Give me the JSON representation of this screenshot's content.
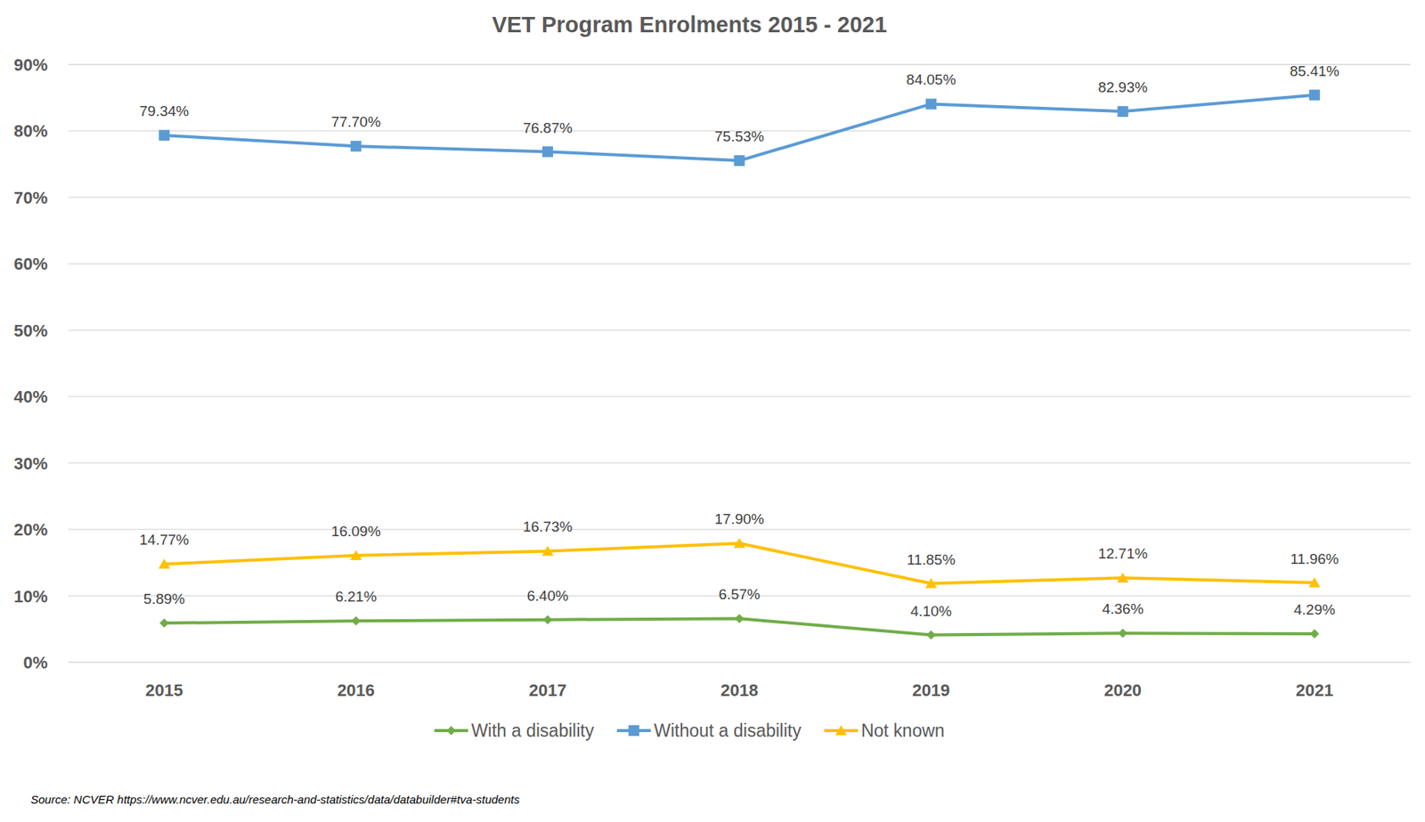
{
  "chart_data": {
    "type": "line",
    "title": "VET Program Enrolments 2015 - 2021",
    "categories": [
      "2015",
      "2016",
      "2017",
      "2018",
      "2019",
      "2020",
      "2021"
    ],
    "series": [
      {
        "name": "With a disability",
        "color": "#70ad47",
        "marker": "diamond",
        "values": [
          5.89,
          6.21,
          6.4,
          6.57,
          4.1,
          4.36,
          4.29
        ],
        "value_labels": [
          "5.89%",
          "6.21%",
          "6.40%",
          "6.57%",
          "4.10%",
          "4.36%",
          "4.29%"
        ]
      },
      {
        "name": "Without a disability",
        "color": "#5b9bd5",
        "marker": "square",
        "values": [
          79.34,
          77.7,
          76.87,
          75.53,
          84.05,
          82.93,
          85.41
        ],
        "value_labels": [
          "79.34%",
          "77.70%",
          "76.87%",
          "75.53%",
          "84.05%",
          "82.93%",
          "85.41%"
        ]
      },
      {
        "name": "Not known",
        "color": "#ffc000",
        "marker": "triangle",
        "values": [
          14.77,
          16.09,
          16.73,
          17.9,
          11.85,
          12.71,
          11.96
        ],
        "value_labels": [
          "14.77%",
          "16.09%",
          "16.73%",
          "17.90%",
          "11.85%",
          "12.71%",
          "11.96%"
        ]
      }
    ],
    "ylim": [
      0,
      90
    ],
    "yticks": [
      {
        "value": 0,
        "label": "0%"
      },
      {
        "value": 10,
        "label": "10%"
      },
      {
        "value": 20,
        "label": "20%"
      },
      {
        "value": 30,
        "label": "30%"
      },
      {
        "value": 40,
        "label": "40%"
      },
      {
        "value": 50,
        "label": "50%"
      },
      {
        "value": 60,
        "label": "60%"
      },
      {
        "value": 70,
        "label": "70%"
      },
      {
        "value": 80,
        "label": "80%"
      },
      {
        "value": 90,
        "label": "90%"
      }
    ],
    "grid": true,
    "data_labels": true,
    "legend": "bottom",
    "annotations": [
      "Source: NCVER https://www.ncver.edu.au/research-and-statistics/data/databuilder#tva-students"
    ]
  }
}
